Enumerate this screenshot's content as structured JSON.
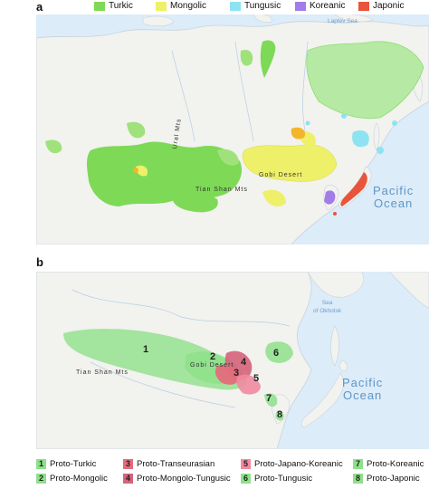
{
  "panel_a": {
    "letter": "a",
    "legend": [
      {
        "label": "Turkic",
        "color": "#7ed957"
      },
      {
        "label": "Mongolic",
        "color": "#eef06a"
      },
      {
        "label": "Tungusic",
        "color": "#8ee3f2"
      },
      {
        "label": "Koreanic",
        "color": "#a27ce8"
      },
      {
        "label": "Japonic",
        "color": "#e8553a"
      }
    ],
    "labels": {
      "laptev_sea": "Laptev Sea",
      "ural_mts": "Ural Mts",
      "tian_shan": "Tian Shan Mts",
      "gobi": "Gobi Desert",
      "pacific_line1": "Pacific",
      "pacific_line2": "Ocean"
    }
  },
  "panel_b": {
    "letter": "b",
    "labels": {
      "okhotsk_line1": "Sea",
      "okhotsk_line2": "of Okhotsk",
      "tian_shan": "Tian Shan Mts",
      "gobi": "Gobi Desert",
      "pacific_line1": "Pacific",
      "pacific_line2": "Ocean"
    },
    "region_numbers": [
      "1",
      "2",
      "3",
      "4",
      "5",
      "6",
      "7",
      "8"
    ],
    "legend": [
      {
        "num": "1",
        "label": "Proto-Turkic",
        "color": "#8ee08a"
      },
      {
        "num": "3",
        "label": "Proto-Transeurasian",
        "color": "#e56b7c"
      },
      {
        "num": "5",
        "label": "Proto-Japano-Koreanic",
        "color": "#f08aa0"
      },
      {
        "num": "7",
        "label": "Proto-Koreanic",
        "color": "#8ee08a"
      },
      {
        "num": "2",
        "label": "Proto-Mongolic",
        "color": "#8ee08a"
      },
      {
        "num": "4",
        "label": "Proto-Mongolo-Tungusic",
        "color": "#d5637a"
      },
      {
        "num": "6",
        "label": "Proto-Tungusic",
        "color": "#8ee08a"
      },
      {
        "num": "8",
        "label": "Proto-Japonic",
        "color": "#8ee08a"
      }
    ]
  }
}
